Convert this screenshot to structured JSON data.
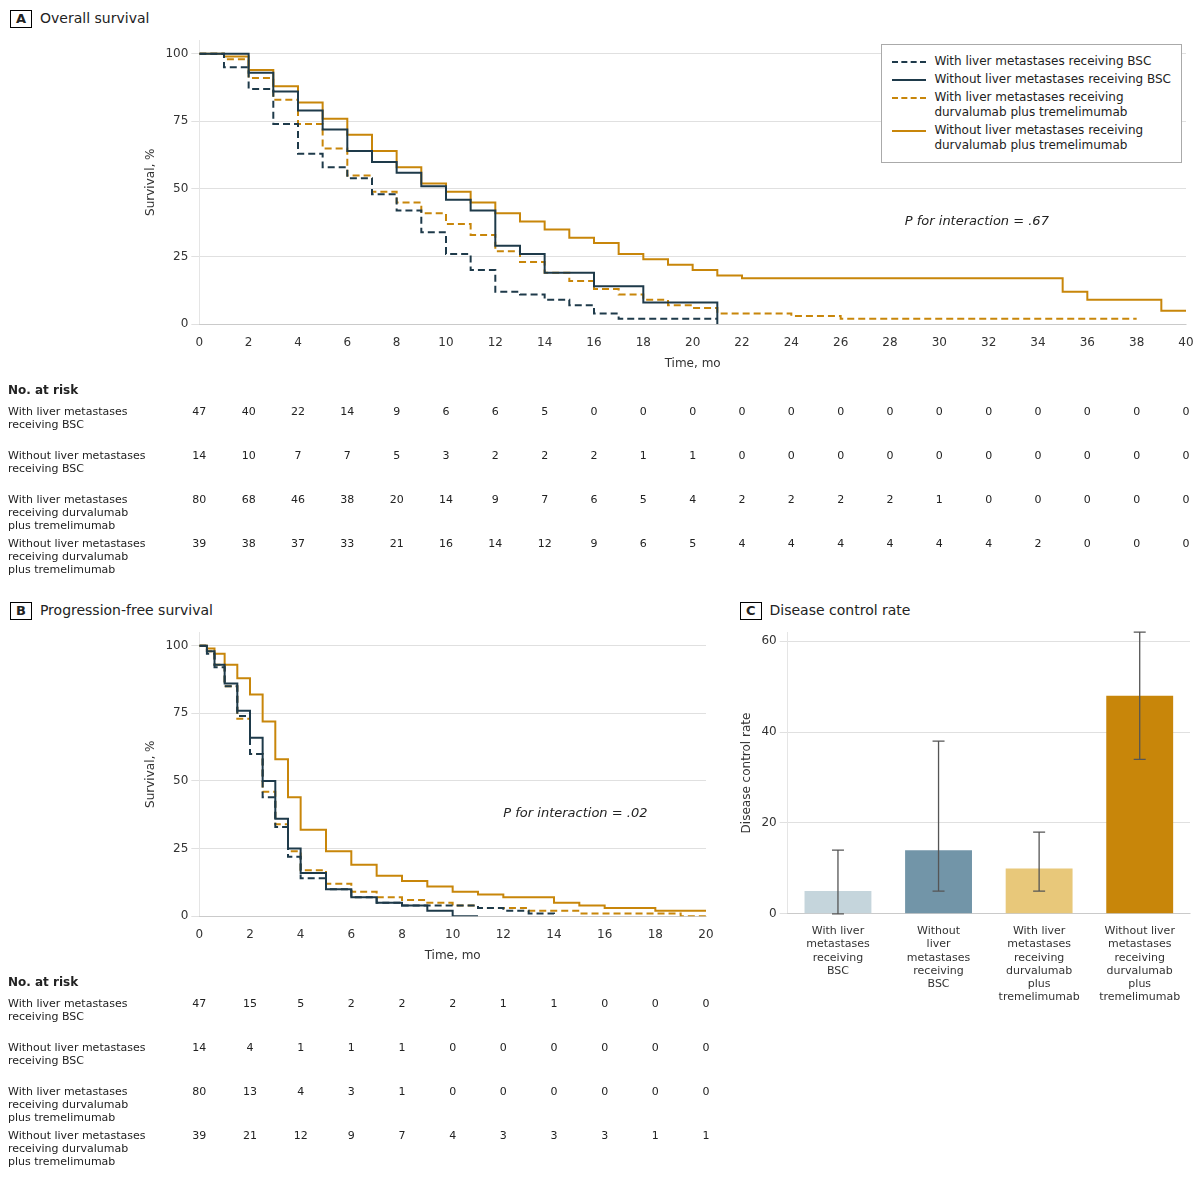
{
  "chart_data": [
    {
      "type": "step",
      "panel_label": "A",
      "title": "Overall survival",
      "xlabel": "Time, mo",
      "ylabel": "Survival, %",
      "xlim": [
        0,
        40
      ],
      "xticks": [
        0,
        2,
        4,
        6,
        8,
        10,
        12,
        14,
        16,
        18,
        20,
        22,
        24,
        26,
        28,
        30,
        32,
        34,
        36,
        38,
        40
      ],
      "ylim": [
        0,
        105
      ],
      "yticks": [
        0,
        25,
        50,
        75,
        100
      ],
      "grid": "y",
      "legend": "upper right",
      "annotations": [
        {
          "text": "P for interaction = .67"
        }
      ],
      "series": [
        {
          "name": "With liver metastases receiving BSC",
          "color": "#1e3a4a",
          "line_style": "dashed",
          "x": [
            0,
            1,
            2,
            3,
            4,
            5,
            6,
            7,
            8,
            9,
            10,
            11,
            12,
            13,
            14,
            15,
            16,
            17,
            18,
            19,
            20,
            21
          ],
          "values": [
            100,
            95,
            87,
            74,
            63,
            58,
            54,
            48,
            42,
            34,
            26,
            20,
            12,
            11,
            9,
            7,
            4,
            2,
            2,
            2,
            2,
            2
          ]
        },
        {
          "name": "Without liver metastases receiving BSC",
          "color": "#1e3a4a",
          "line_style": "solid",
          "x": [
            0,
            1,
            2,
            3,
            4,
            5,
            6,
            7,
            8,
            9,
            10,
            11,
            12,
            13,
            14,
            15,
            16,
            17,
            18,
            19,
            20,
            21
          ],
          "values": [
            100,
            100,
            93,
            86,
            79,
            72,
            64,
            60,
            56,
            51,
            46,
            42,
            29,
            26,
            19,
            19,
            14,
            14,
            8,
            8,
            8,
            0
          ]
        },
        {
          "name": "With liver metastases receiving\ndurvalumab plus tremelimumab",
          "color": "#c8860a",
          "line_style": "dashed",
          "x": [
            0,
            1,
            2,
            3,
            4,
            5,
            6,
            7,
            8,
            9,
            10,
            11,
            12,
            13,
            14,
            15,
            16,
            17,
            18,
            19,
            20,
            21,
            22,
            23,
            24,
            25,
            26,
            27,
            28,
            29,
            30,
            31,
            32,
            33,
            34,
            35,
            36,
            37,
            38
          ],
          "values": [
            100,
            98,
            91,
            83,
            74,
            65,
            55,
            49,
            45,
            41,
            37,
            33,
            27,
            23,
            19,
            16,
            13,
            11,
            9,
            7,
            6,
            4,
            4,
            4,
            3,
            3,
            2,
            2,
            2,
            2,
            2,
            2,
            2,
            2,
            2,
            2,
            2,
            2,
            2
          ]
        },
        {
          "name": "Without liver metastases receiving\ndurvalumab plus tremelimumab",
          "color": "#c8860a",
          "line_style": "solid",
          "x": [
            0,
            1,
            2,
            3,
            4,
            5,
            6,
            7,
            8,
            9,
            10,
            11,
            12,
            13,
            14,
            15,
            16,
            17,
            18,
            19,
            20,
            21,
            22,
            23,
            24,
            25,
            26,
            27,
            28,
            29,
            30,
            31,
            32,
            33,
            34,
            35,
            36,
            37,
            38,
            39,
            40
          ],
          "values": [
            100,
            99,
            94,
            88,
            82,
            76,
            70,
            64,
            58,
            52,
            49,
            45,
            41,
            38,
            35,
            32,
            30,
            26,
            24,
            22,
            20,
            18,
            17,
            17,
            17,
            17,
            17,
            17,
            17,
            17,
            17,
            17,
            17,
            17,
            17,
            12,
            9,
            9,
            9,
            5,
            5
          ]
        }
      ],
      "at_risk": {
        "title": "No. at risk",
        "times": [
          0,
          2,
          4,
          6,
          8,
          10,
          12,
          14,
          16,
          18,
          20,
          22,
          24,
          26,
          28,
          30,
          32,
          34,
          36,
          38,
          40
        ],
        "rows": [
          {
            "name": "With liver metastases\nreceiving BSC",
            "values": [
              47,
              40,
              22,
              14,
              9,
              6,
              6,
              5,
              0,
              0,
              0,
              0,
              0,
              0,
              0,
              0,
              0,
              0,
              0,
              0,
              0
            ]
          },
          {
            "name": "Without liver metastases\nreceiving BSC",
            "values": [
              14,
              10,
              7,
              7,
              5,
              3,
              2,
              2,
              2,
              1,
              1,
              0,
              0,
              0,
              0,
              0,
              0,
              0,
              0,
              0,
              0
            ]
          },
          {
            "name": "With liver metastases\nreceiving durvalumab\nplus tremelimumab",
            "values": [
              80,
              68,
              46,
              38,
              20,
              14,
              9,
              7,
              6,
              5,
              4,
              2,
              2,
              2,
              2,
              1,
              0,
              0,
              0,
              0,
              0
            ]
          },
          {
            "name": "Without liver metastases\nreceiving durvalumab\nplus tremelimumab",
            "values": [
              39,
              38,
              37,
              33,
              21,
              16,
              14,
              12,
              9,
              6,
              5,
              4,
              4,
              4,
              4,
              4,
              4,
              2,
              0,
              0,
              0
            ]
          }
        ]
      }
    },
    {
      "type": "step",
      "panel_label": "B",
      "title": "Progression-free survival",
      "xlabel": "Time, mo",
      "ylabel": "Survival, %",
      "xlim": [
        0,
        20
      ],
      "xticks": [
        0,
        2,
        4,
        6,
        8,
        10,
        12,
        14,
        16,
        18,
        20
      ],
      "ylim": [
        0,
        105
      ],
      "yticks": [
        0,
        25,
        50,
        75,
        100
      ],
      "grid": "y",
      "annotations": [
        {
          "text": "P for interaction = .02"
        }
      ],
      "series": [
        {
          "name": "With liver metastases receiving BSC",
          "color": "#1e3a4a",
          "line_style": "dashed",
          "x": [
            0,
            0.3,
            0.6,
            1.0,
            1.5,
            2.0,
            2.5,
            3.0,
            3.5,
            4.0,
            5,
            6,
            7,
            8,
            9,
            10,
            11,
            12,
            13,
            14
          ],
          "values": [
            100,
            97,
            92,
            85,
            74,
            60,
            44,
            33,
            22,
            14,
            10,
            7,
            5,
            4,
            4,
            4,
            3,
            2,
            1,
            0
          ]
        },
        {
          "name": "Without liver metastases receiving BSC",
          "color": "#1e3a4a",
          "line_style": "solid",
          "x": [
            0,
            0.3,
            0.6,
            1.0,
            1.5,
            2.0,
            2.5,
            3.0,
            3.5,
            4.0,
            5,
            6,
            7,
            8,
            9,
            10,
            11
          ],
          "values": [
            100,
            98,
            93,
            86,
            76,
            66,
            50,
            36,
            25,
            16,
            10,
            7,
            5,
            4,
            2,
            0,
            0
          ]
        },
        {
          "name": "With liver metastases receiving\ndurvalumab plus tremelimumab",
          "color": "#c8860a",
          "line_style": "dashed",
          "x": [
            0,
            0.3,
            0.6,
            1.0,
            1.5,
            2.0,
            2.5,
            3.0,
            3.5,
            4.0,
            5,
            6,
            7,
            8,
            9,
            10,
            11,
            12,
            13,
            14,
            15,
            16,
            17,
            18,
            19,
            20
          ],
          "values": [
            100,
            98,
            93,
            85,
            73,
            60,
            46,
            34,
            24,
            17,
            12,
            9,
            7,
            6,
            5,
            4,
            3,
            3,
            2,
            2,
            1,
            1,
            1,
            1,
            0,
            0
          ]
        },
        {
          "name": "Without liver metastases receiving\ndurvalumab plus tremelimumab",
          "color": "#c8860a",
          "line_style": "solid",
          "x": [
            0,
            0.3,
            0.6,
            1.0,
            1.5,
            2.0,
            2.5,
            3.0,
            3.5,
            4.0,
            5,
            6,
            7,
            8,
            9,
            10,
            11,
            12,
            13,
            14,
            15,
            16,
            17,
            18,
            19,
            20
          ],
          "values": [
            100,
            99,
            97,
            93,
            88,
            82,
            72,
            58,
            44,
            32,
            24,
            19,
            15,
            13,
            11,
            9,
            8,
            7,
            7,
            5,
            4,
            3,
            3,
            2,
            2,
            2
          ]
        }
      ],
      "at_risk": {
        "title": "No. at risk",
        "times": [
          0,
          2,
          4,
          6,
          8,
          10,
          12,
          14,
          16,
          18,
          20
        ],
        "rows": [
          {
            "name": "With liver metastases\nreceiving BSC",
            "values": [
              47,
              15,
              5,
              2,
              2,
              2,
              1,
              1,
              0,
              0,
              0
            ]
          },
          {
            "name": "Without liver metastases\nreceiving BSC",
            "values": [
              14,
              4,
              1,
              1,
              1,
              0,
              0,
              0,
              0,
              0,
              0
            ]
          },
          {
            "name": "With liver metastases\nreceiving durvalumab\nplus tremelimumab",
            "values": [
              80,
              13,
              4,
              3,
              1,
              0,
              0,
              0,
              0,
              0,
              0
            ]
          },
          {
            "name": "Without liver metastases\nreceiving durvalumab\nplus tremelimumab",
            "values": [
              39,
              21,
              12,
              9,
              7,
              4,
              3,
              3,
              3,
              1,
              1
            ]
          }
        ]
      }
    },
    {
      "type": "bar",
      "panel_label": "C",
      "title": "Disease control rate",
      "ylabel": "Disease control rate",
      "categories": [
        "With liver\nmetastases\nreceiving\nBSC",
        "Without\nliver\nmetastases\nreceiving\nBSC",
        "With liver\nmetastases\nreceiving\ndurvalumab\nplus\ntremelimumab",
        "Without liver\nmetastases\nreceiving\ndurvalumab\nplus\ntremelimumab"
      ],
      "values": [
        5,
        14,
        10,
        48
      ],
      "errors_lower": [
        5,
        9,
        5,
        14
      ],
      "errors_upper": [
        9,
        24,
        8,
        14
      ],
      "colors": [
        "#c5d5dc",
        "#7295a8",
        "#e8c87a",
        "#c8860a"
      ],
      "ylim": [
        0,
        62
      ],
      "yticks": [
        0,
        20,
        40,
        60
      ],
      "grid": "y"
    }
  ]
}
